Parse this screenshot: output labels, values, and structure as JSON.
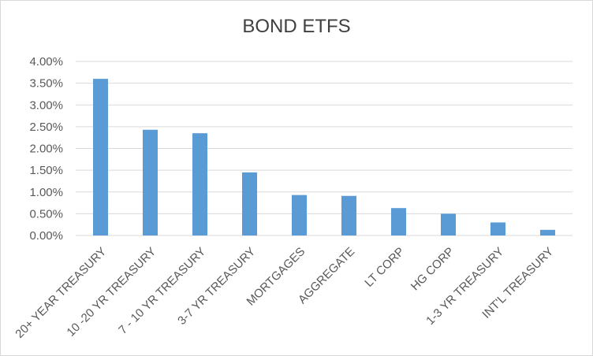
{
  "chart_data": {
    "type": "bar",
    "title": "BOND ETFS",
    "xlabel": "",
    "ylabel": "",
    "categories": [
      "20+ YEAR TREASURY",
      "10 -20 YR TREASURY",
      "7 - 10 YR TREASURY",
      "3-7 YR TREASURY",
      "MORTGAGES",
      "AGGREGATE",
      "LT CORP",
      "HG CORP",
      "1-3 YR TREASURY",
      "INT'L TREASURY"
    ],
    "values": [
      0.036,
      0.0243,
      0.0235,
      0.0145,
      0.0093,
      0.0091,
      0.0063,
      0.005,
      0.003,
      0.0013
    ],
    "ylim": [
      0,
      0.04
    ],
    "yticks": [
      "0.00%",
      "0.50%",
      "1.00%",
      "1.50%",
      "2.00%",
      "2.50%",
      "3.00%",
      "3.50%",
      "4.00%"
    ],
    "grid": true,
    "legend": "none",
    "bar_color": "#5b9bd5",
    "grid_color": "#d9d9d9"
  }
}
